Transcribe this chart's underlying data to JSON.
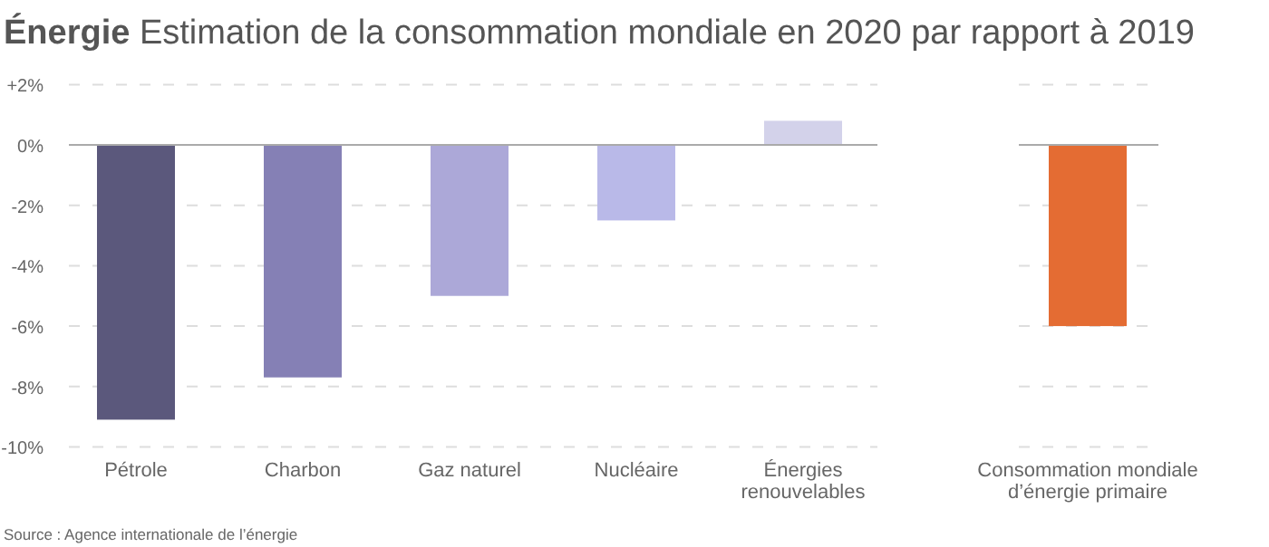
{
  "chart_data": {
    "type": "bar",
    "title": "Énergie Estimation de la consommation mondiale en 2020 par rapport à 2019",
    "categories": [
      "Pétrole",
      "Charbon",
      "Gaz naturel",
      "Nucléaire",
      "Énergies renouvelables",
      "Consommation mondiale d’énergie primaire"
    ],
    "values": [
      -9.1,
      -7.7,
      -5.0,
      -2.5,
      0.8,
      -6.0
    ],
    "colors": [
      "#5b587c",
      "#8580b5",
      "#aca8d8",
      "#b9b9e8",
      "#d3d2ea",
      "#e46c33"
    ],
    "ylim": [
      -10,
      2
    ],
    "yticks": [
      {
        "value": 2,
        "label": "+2%"
      },
      {
        "value": 0,
        "label": "0%"
      },
      {
        "value": -2,
        "label": "-2%"
      },
      {
        "value": -4,
        "label": "-4%"
      },
      {
        "value": -6,
        "label": "-6%"
      },
      {
        "value": -8,
        "label": "-8%"
      },
      {
        "value": -10,
        "label": "-10%"
      }
    ],
    "grid": "y",
    "annotations": [
      "Source : Agence internationale de l’énergie"
    ]
  }
}
